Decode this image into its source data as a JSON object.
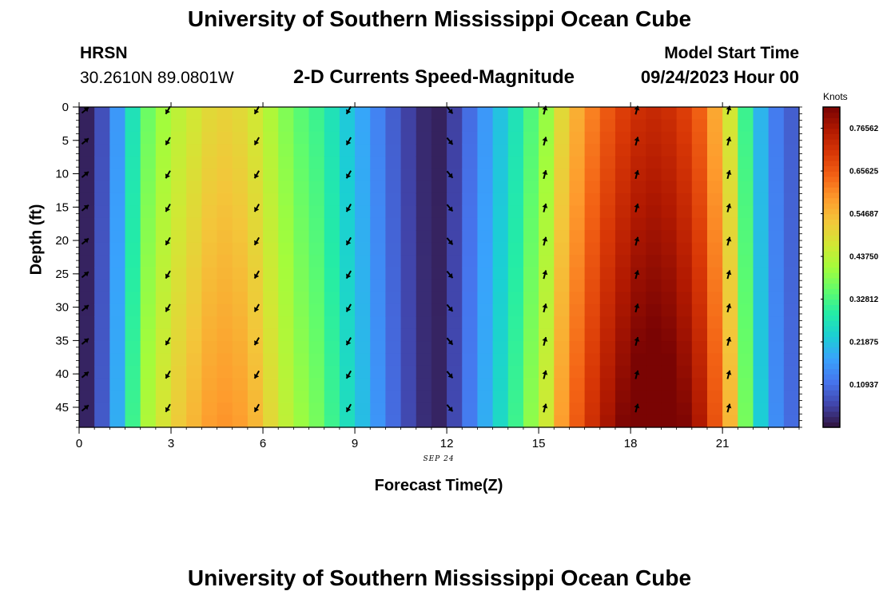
{
  "header": {
    "main_title": "University of Southern Mississippi Ocean Cube",
    "station": "HRSN",
    "coordinates": "30.2610N  89.0801W",
    "subtitle": "2-D Currents Speed-Magnitude",
    "model_start_label": "Model Start Time",
    "model_start_value": "09/24/2023 Hour 00"
  },
  "footer": {
    "repeated_title": "University of Southern Mississippi Ocean Cube"
  },
  "chart_data": {
    "type": "heatmap",
    "title": "2-D Currents Speed-Magnitude",
    "xlabel": "Forecast Time(Z)",
    "ylabel": "Depth (ft)",
    "x_date_label": "SEP 24",
    "xlim": [
      0,
      23.5
    ],
    "ylim": [
      48,
      0
    ],
    "x_ticks": [
      0,
      3,
      6,
      9,
      12,
      15,
      18,
      21
    ],
    "y_ticks": [
      0,
      5,
      10,
      15,
      20,
      25,
      30,
      35,
      40,
      45
    ],
    "y_direction": "depth increases downward",
    "colorbar": {
      "unit": "Knots",
      "range": [
        0.0,
        0.82
      ],
      "tick_labels": [
        "0.76562",
        "0.65625",
        "0.54687",
        "0.43750",
        "0.32812",
        "0.21875",
        "0.10937"
      ],
      "colormap": "turbo",
      "colors": [
        "#30123b",
        "#4145ab",
        "#4675ed",
        "#39a2fc",
        "#1bcfd4",
        "#24eca6",
        "#61fc6c",
        "#a4fc3b",
        "#d1e834",
        "#f3c63a",
        "#fe9b2d",
        "#f36315",
        "#d93806",
        "#b11901",
        "#7a0403"
      ]
    },
    "speed_knots_by_hour": [
      {
        "hour": 0.0,
        "speed": 0.02
      },
      {
        "hour": 0.5,
        "speed": 0.08
      },
      {
        "hour": 1.0,
        "speed": 0.18
      },
      {
        "hour": 1.5,
        "speed": 0.3
      },
      {
        "hour": 2.0,
        "speed": 0.4
      },
      {
        "hour": 2.5,
        "speed": 0.45
      },
      {
        "hour": 3.0,
        "speed": 0.49
      },
      {
        "hour": 3.5,
        "speed": 0.52
      },
      {
        "hour": 4.0,
        "speed": 0.55
      },
      {
        "hour": 4.5,
        "speed": 0.56
      },
      {
        "hour": 5.0,
        "speed": 0.55
      },
      {
        "hour": 5.5,
        "speed": 0.52
      },
      {
        "hour": 6.0,
        "speed": 0.47
      },
      {
        "hour": 6.5,
        "speed": 0.42
      },
      {
        "hour": 7.0,
        "speed": 0.38
      },
      {
        "hour": 7.5,
        "speed": 0.35
      },
      {
        "hour": 8.0,
        "speed": 0.3
      },
      {
        "hour": 8.5,
        "speed": 0.25
      },
      {
        "hour": 9.0,
        "speed": 0.2
      },
      {
        "hour": 9.5,
        "speed": 0.15
      },
      {
        "hour": 10.0,
        "speed": 0.1
      },
      {
        "hour": 10.5,
        "speed": 0.06
      },
      {
        "hour": 11.0,
        "speed": 0.03
      },
      {
        "hour": 11.5,
        "speed": 0.02
      },
      {
        "hour": 12.0,
        "speed": 0.06
      },
      {
        "hour": 12.5,
        "speed": 0.12
      },
      {
        "hour": 13.0,
        "speed": 0.18
      },
      {
        "hour": 13.5,
        "speed": 0.24
      },
      {
        "hour": 14.0,
        "speed": 0.3
      },
      {
        "hour": 14.5,
        "speed": 0.37
      },
      {
        "hour": 15.0,
        "speed": 0.44
      },
      {
        "hour": 15.5,
        "speed": 0.55
      },
      {
        "hour": 16.0,
        "speed": 0.62
      },
      {
        "hour": 16.5,
        "speed": 0.68
      },
      {
        "hour": 17.0,
        "speed": 0.73
      },
      {
        "hour": 17.5,
        "speed": 0.77
      },
      {
        "hour": 18.0,
        "speed": 0.8
      },
      {
        "hour": 18.5,
        "speed": 0.81
      },
      {
        "hour": 19.0,
        "speed": 0.8
      },
      {
        "hour": 19.5,
        "speed": 0.77
      },
      {
        "hour": 20.0,
        "speed": 0.72
      },
      {
        "hour": 20.5,
        "speed": 0.63
      },
      {
        "hour": 21.0,
        "speed": 0.52
      },
      {
        "hour": 21.5,
        "speed": 0.35
      },
      {
        "hour": 22.0,
        "speed": 0.22
      },
      {
        "hour": 22.5,
        "speed": 0.14
      },
      {
        "hour": 23.0,
        "speed": 0.1
      }
    ],
    "depth_variation": "speed slightly increases with depth",
    "arrow_times": [
      0.2,
      2.9,
      5.8,
      8.8,
      12.1,
      15.2,
      18.2,
      21.2
    ],
    "arrow_depths": [
      0,
      5,
      10,
      15,
      20,
      25,
      30,
      35,
      40,
      45
    ],
    "arrow_direction_deg": [
      50,
      210,
      210,
      210,
      140,
      15,
      15,
      15
    ],
    "arrow_color": "#000000"
  }
}
